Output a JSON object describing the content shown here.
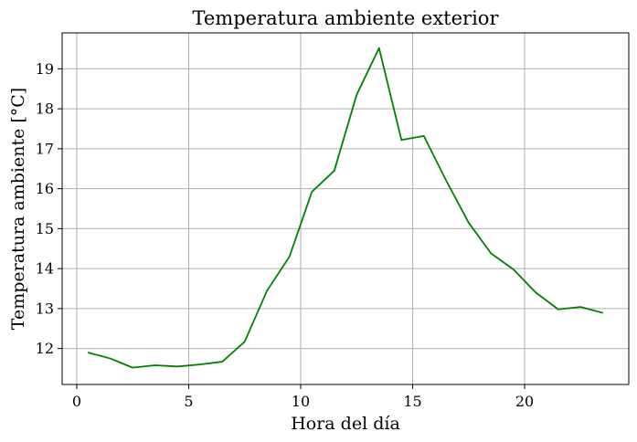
{
  "chart_data": {
    "type": "line",
    "title": "Temperatura ambiente exterior",
    "xlabel": "Hora del día",
    "ylabel": "Temperatura ambiente [°C]",
    "xlim": [
      -0.65,
      24.65
    ],
    "ylim": [
      11.1,
      19.9
    ],
    "xticks": [
      0,
      5,
      10,
      15,
      20
    ],
    "yticks": [
      12,
      13,
      14,
      15,
      16,
      17,
      18,
      19
    ],
    "grid": true,
    "series": [
      {
        "color": "#008000",
        "x": [
          0.5,
          1.5,
          2.5,
          3.5,
          4.5,
          5.5,
          6.5,
          7.5,
          8.5,
          9.5,
          10.5,
          11.5,
          12.5,
          13.5,
          14.5,
          15.5,
          16.5,
          17.5,
          18.5,
          19.5,
          20.5,
          21.5,
          22.5,
          23.5
        ],
        "y": [
          11.9,
          11.75,
          11.52,
          11.58,
          11.55,
          11.6,
          11.67,
          12.17,
          13.45,
          14.3,
          15.92,
          16.45,
          18.35,
          19.52,
          17.22,
          17.32,
          16.2,
          15.15,
          14.38,
          13.98,
          13.4,
          12.98,
          13.04,
          12.89
        ]
      }
    ]
  }
}
